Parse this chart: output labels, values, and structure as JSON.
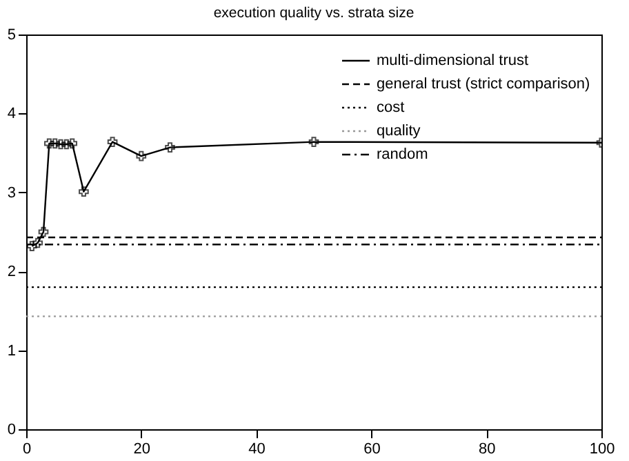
{
  "chart_data": {
    "type": "line",
    "title": "execution quality vs. strata size",
    "xlim": [
      0,
      100
    ],
    "xticks": [
      0,
      20,
      40,
      60,
      80,
      100
    ],
    "ylim": [
      0,
      5
    ],
    "yticks": [
      0,
      1,
      2,
      3,
      4,
      5
    ],
    "legend": "top right",
    "grid": false,
    "series": [
      {
        "name": "multi-dimensional trust",
        "color": "#000000",
        "line_style": "solid",
        "marker": "cross",
        "x": [
          1,
          2,
          3,
          4,
          5,
          6,
          7,
          8,
          10,
          15,
          20,
          25,
          50,
          100
        ],
        "values": [
          2.32,
          2.36,
          2.5,
          3.62,
          3.62,
          3.61,
          3.61,
          3.62,
          3.01,
          3.64,
          3.46,
          3.57,
          3.64,
          3.63
        ]
      },
      {
        "name": "general trust (strict comparison)",
        "color": "#000000",
        "line_style": "dashed",
        "x": [
          0,
          100
        ],
        "values": [
          2.43,
          2.43
        ]
      },
      {
        "name": "cost",
        "color": "#000000",
        "line_style": "dotted",
        "x": [
          0,
          100
        ],
        "values": [
          1.8,
          1.8
        ]
      },
      {
        "name": "quality",
        "color": "#999999",
        "line_style": "dotted",
        "x": [
          0,
          100
        ],
        "values": [
          1.43,
          1.43
        ]
      },
      {
        "name": "random",
        "color": "#000000",
        "line_style": "dashdot",
        "x": [
          0,
          100
        ],
        "values": [
          2.34,
          2.34
        ]
      }
    ]
  }
}
